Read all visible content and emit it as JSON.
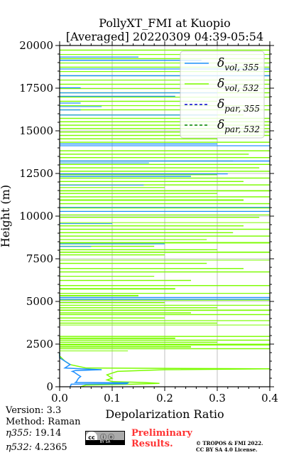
{
  "chart_data": {
    "type": "line",
    "title_line1": "PollyXT_FMI at Kuopio",
    "title_line2": "[Averaged] 20220309 04:39-05:54",
    "xlabel": "Depolarization Ratio",
    "ylabel": "Height (m)",
    "xlim": [
      0,
      0.4
    ],
    "ylim": [
      0,
      20000
    ],
    "xticks": [
      "0.0",
      "0.1",
      "0.2",
      "0.3",
      "0.4"
    ],
    "yticks": [
      "0",
      "2500",
      "5000",
      "7500",
      "10000",
      "12500",
      "15000",
      "17500",
      "20000"
    ],
    "grid": true,
    "legend_position": "top-right",
    "series": [
      {
        "name_base": "δ",
        "name_sub": "vol, 355",
        "color": "#1e90ff",
        "style": "solid",
        "points": [
          [
            0.02,
            0
          ],
          [
            0.022,
            150
          ],
          [
            0.128,
            180
          ],
          [
            0.13,
            230
          ],
          [
            0.03,
            250
          ],
          [
            0.032,
            300
          ],
          [
            0.036,
            500
          ],
          [
            0.04,
            600
          ],
          [
            0.035,
            700
          ],
          [
            0.03,
            800
          ],
          [
            0.028,
            850
          ],
          [
            0.024,
            900
          ],
          [
            0.03,
            950
          ],
          [
            0.08,
            1000
          ],
          [
            0.04,
            1050
          ],
          [
            0.01,
            1100
          ],
          [
            0.02,
            1300
          ],
          [
            0.01,
            1500
          ],
          [
            0.0,
            1700
          ],
          [
            0.0,
            2000
          ]
        ]
      },
      {
        "name_base": "δ",
        "name_sub": "vol, 532",
        "color": "#7cfc00",
        "style": "solid",
        "points": [
          [
            0.04,
            0
          ],
          [
            0.05,
            100
          ],
          [
            0.14,
            150
          ],
          [
            0.19,
            200
          ],
          [
            0.16,
            250
          ],
          [
            0.1,
            300
          ],
          [
            0.09,
            400
          ],
          [
            0.1,
            500
          ],
          [
            0.09,
            700
          ],
          [
            0.1,
            800
          ],
          [
            0.11,
            900
          ],
          [
            0.2,
            1000
          ],
          [
            0.4,
            1050
          ],
          [
            0.05,
            1100
          ],
          [
            0.02,
            1300
          ],
          [
            0.01,
            1500
          ],
          [
            0.0,
            1800
          ],
          [
            0.0,
            2000
          ]
        ]
      },
      {
        "name_base": "δ",
        "name_sub": "par, 355",
        "color": "#0000cc",
        "style": "dashed",
        "points": []
      },
      {
        "name_base": "δ",
        "name_sub": "par, 532",
        "color": "#008000",
        "style": "dashed",
        "points": []
      }
    ],
    "noise_bands_532": [
      [
        2080,
        2120,
        0.13
      ],
      [
        2200,
        2260,
        0.4
      ],
      [
        2300,
        2380,
        0.25
      ],
      [
        2420,
        2520,
        0.4
      ],
      [
        2580,
        2640,
        0.3
      ],
      [
        2700,
        2760,
        0.4
      ],
      [
        2800,
        2880,
        0.22
      ],
      [
        2920,
        2980,
        0.4
      ],
      [
        3600,
        3640,
        0.4
      ],
      [
        3700,
        3760,
        0.3
      ],
      [
        3850,
        3900,
        0.4
      ],
      [
        4000,
        4060,
        0.2
      ],
      [
        4200,
        4260,
        0.4
      ],
      [
        4300,
        4360,
        0.25
      ],
      [
        4450,
        4520,
        0.4
      ],
      [
        4600,
        4660,
        0.3
      ],
      [
        4750,
        4800,
        0.4
      ],
      [
        4900,
        4960,
        0.2
      ],
      [
        5050,
        5100,
        0.4
      ],
      [
        5300,
        5380,
        0.15
      ],
      [
        5450,
        5500,
        0.4
      ],
      [
        5700,
        5780,
        0.22
      ],
      [
        5900,
        5960,
        0.4
      ],
      [
        6200,
        6260,
        0.25
      ],
      [
        6450,
        6500,
        0.18
      ],
      [
        6700,
        6760,
        0.4
      ],
      [
        6900,
        6960,
        0.35
      ],
      [
        7200,
        7260,
        0.28
      ],
      [
        7400,
        7440,
        0.4
      ],
      [
        7700,
        7760,
        0.2
      ],
      [
        7850,
        7920,
        0.4
      ],
      [
        8000,
        8060,
        0.3
      ],
      [
        8200,
        8260,
        0.18
      ],
      [
        8400,
        8480,
        0.4
      ],
      [
        8600,
        8650,
        0.28
      ],
      [
        8800,
        8860,
        0.4
      ],
      [
        9000,
        9060,
        0.33
      ],
      [
        9200,
        9260,
        0.4
      ],
      [
        9400,
        9460,
        0.35
      ],
      [
        9600,
        9640,
        0.4
      ],
      [
        9900,
        9960,
        0.38
      ],
      [
        10050,
        10100,
        0.4
      ],
      [
        10250,
        10300,
        0.4
      ],
      [
        10450,
        10500,
        0.4
      ],
      [
        10700,
        10760,
        0.4
      ],
      [
        10900,
        10980,
        0.35
      ],
      [
        11100,
        11160,
        0.4
      ],
      [
        11300,
        11360,
        0.3
      ],
      [
        11450,
        11520,
        0.4
      ],
      [
        11650,
        11700,
        0.2
      ],
      [
        11800,
        11860,
        0.4
      ],
      [
        12000,
        12060,
        0.35
      ],
      [
        12200,
        12260,
        0.4
      ],
      [
        12400,
        12460,
        0.3
      ],
      [
        12600,
        12660,
        0.4
      ],
      [
        12800,
        12860,
        0.38
      ],
      [
        13000,
        13060,
        0.4
      ],
      [
        13200,
        13260,
        0.33
      ],
      [
        13400,
        13460,
        0.4
      ],
      [
        13600,
        13660,
        0.36
      ],
      [
        13800,
        13860,
        0.4
      ],
      [
        14300,
        14360,
        0.4
      ],
      [
        14500,
        14560,
        0.3
      ],
      [
        14700,
        14760,
        0.4
      ],
      [
        14900,
        14960,
        0.4
      ],
      [
        15100,
        15160,
        0.4
      ],
      [
        15300,
        15360,
        0.4
      ],
      [
        15500,
        15560,
        0.4
      ],
      [
        15700,
        15760,
        0.4
      ],
      [
        15900,
        15960,
        0.35
      ],
      [
        16200,
        16260,
        0.4
      ],
      [
        16450,
        16500,
        0.4
      ],
      [
        16700,
        16760,
        0.3
      ],
      [
        16950,
        17000,
        0.4
      ],
      [
        17200,
        17260,
        0.4
      ],
      [
        17450,
        17500,
        0.4
      ],
      [
        17700,
        17760,
        0.4
      ],
      [
        17950,
        18000,
        0.4
      ],
      [
        18200,
        18260,
        0.4
      ],
      [
        18450,
        18500,
        0.4
      ],
      [
        18700,
        18760,
        0.4
      ],
      [
        18950,
        19000,
        0.4
      ],
      [
        19200,
        19260,
        0.4
      ],
      [
        19450,
        19500,
        0.4
      ],
      [
        19700,
        19760,
        0.4
      ]
    ],
    "noise_bands_355": [
      [
        5100,
        5150,
        0.4
      ],
      [
        5200,
        5260,
        0.4
      ],
      [
        8200,
        8240,
        0.06
      ],
      [
        8350,
        8400,
        0.2
      ],
      [
        9550,
        9580,
        0.1
      ],
      [
        10250,
        10300,
        0.4
      ],
      [
        10500,
        10540,
        0.4
      ],
      [
        11800,
        11840,
        0.16
      ],
      [
        12300,
        12360,
        0.25
      ],
      [
        12450,
        12500,
        0.32
      ],
      [
        13100,
        13140,
        0.17
      ],
      [
        13200,
        13260,
        0.4
      ],
      [
        14100,
        14150,
        0.4
      ],
      [
        14200,
        14260,
        0.3
      ],
      [
        15900,
        15950,
        0.3
      ],
      [
        16200,
        16250,
        0.04
      ],
      [
        16400,
        16440,
        0.08
      ],
      [
        16600,
        16650,
        0.04
      ],
      [
        17000,
        17050,
        0.22
      ],
      [
        17200,
        17250,
        0.3
      ],
      [
        17500,
        17550,
        0.04
      ],
      [
        18200,
        18260,
        0.4
      ],
      [
        18600,
        18650,
        0.4
      ],
      [
        19100,
        19160,
        0.27
      ],
      [
        19300,
        19350,
        0.15
      ]
    ]
  },
  "info": {
    "version": "Version: 3.3",
    "method": "Method: Raman",
    "eta355_label": "η355:",
    "eta355_value": "19.14",
    "eta532_label": "η532:",
    "eta532_value": "4.2365"
  },
  "footer": {
    "cc_label": "cc",
    "cc_bottom": "BY SA",
    "prelim_line1": "Preliminary",
    "prelim_line2": "Results.",
    "copyright_line1": "© TROPOS & FMI 2022.",
    "copyright_line2": "CC BY SA 4.0 License."
  }
}
